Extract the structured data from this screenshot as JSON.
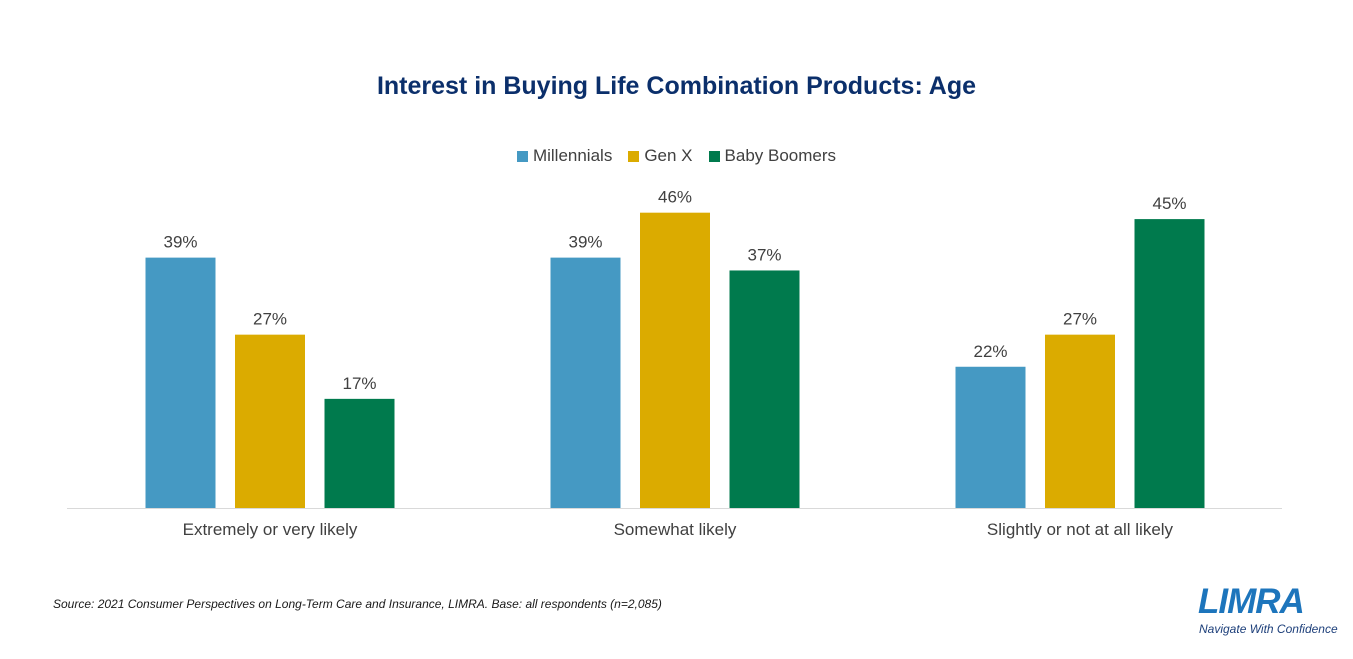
{
  "chart_data": {
    "type": "bar",
    "title": "Interest in Buying Life Combination Products: Age",
    "categories": [
      "Extremely or very likely",
      "Somewhat likely",
      "Slightly or not at all likely"
    ],
    "series": [
      {
        "name": "Millennials",
        "color": "#4599c3",
        "values": [
          39,
          39,
          22
        ]
      },
      {
        "name": "Gen X",
        "color": "#dbab00",
        "values": [
          27,
          46,
          27
        ]
      },
      {
        "name": "Baby Boomers",
        "color": "#007a4d",
        "values": [
          17,
          37,
          45
        ]
      }
    ],
    "value_suffix": "%",
    "ylim": [
      0,
      50
    ],
    "grid": false,
    "legend_position": "top"
  },
  "footer": {
    "source": "Source: 2021 Consumer Perspectives on Long-Term Care and Insurance, LIMRA. Base: all respondents (n=2,085)"
  },
  "logo": {
    "wordmark": "LIMRA",
    "tagline": "Navigate With Confidence"
  }
}
